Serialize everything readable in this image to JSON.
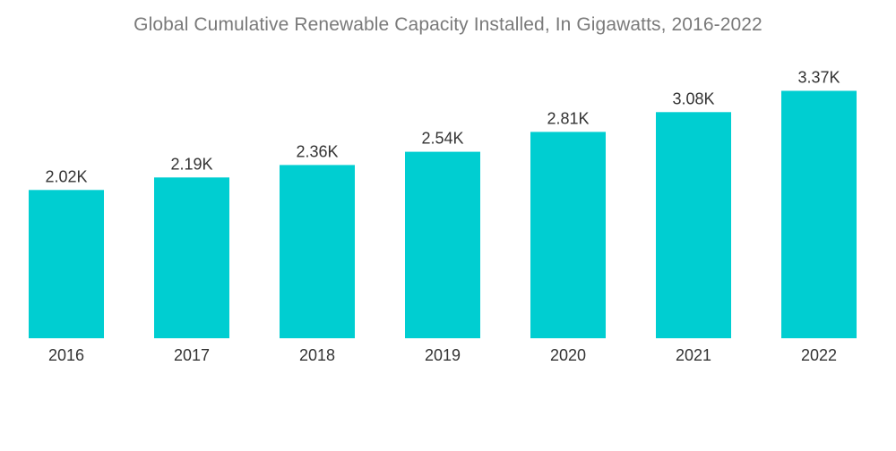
{
  "chart_data": {
    "type": "bar",
    "title": "Global Cumulative Renewable Capacity Installed, In Gigawatts, 2016-2022",
    "xlabel": "",
    "ylabel": "",
    "categories": [
      "2016",
      "2017",
      "2018",
      "2019",
      "2020",
      "2021",
      "2022"
    ],
    "values": [
      2020,
      2190,
      2360,
      2540,
      2810,
      3080,
      3370
    ],
    "data_labels": [
      "2.02K",
      "2.19K",
      "2.36K",
      "2.54K",
      "2.81K",
      "3.08K",
      "3.37K"
    ],
    "ylim": [
      0,
      3900
    ],
    "grid": false,
    "bar_color": "#00ced1"
  }
}
